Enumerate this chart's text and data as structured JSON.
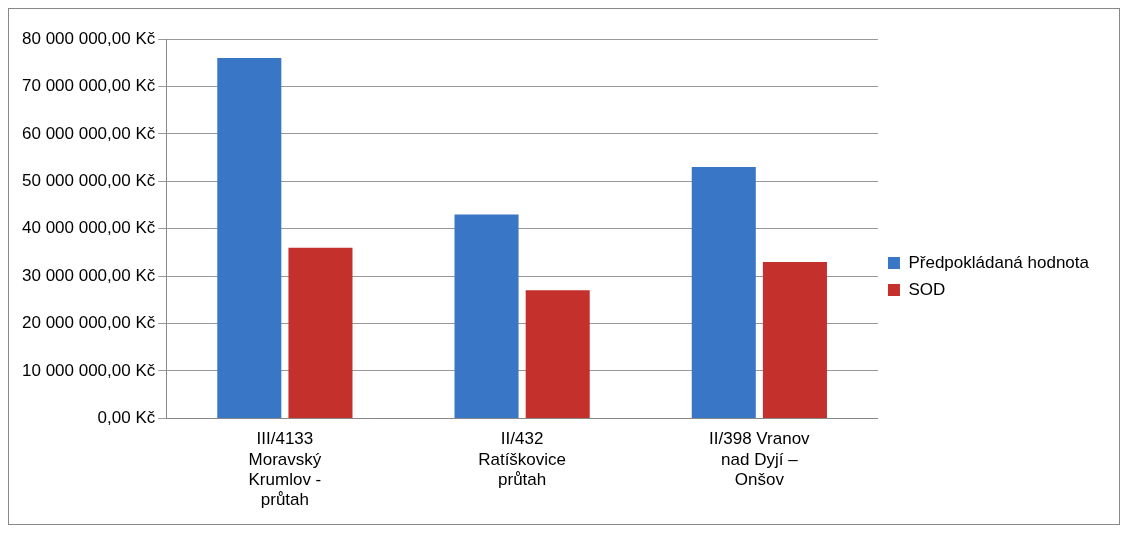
{
  "chart_data": {
    "type": "bar",
    "categories": [
      "III/4133 Moravský Krumlov - průtah",
      "II/432 Ratíškovice průtah",
      "II/398 Vranov nad Dyjí – Onšov"
    ],
    "series": [
      {
        "name": "Předpokládaná hodnota",
        "color": "#3a76c6",
        "values": [
          76000000,
          43000000,
          53000000
        ]
      },
      {
        "name": "SOD",
        "color": "#c4302c",
        "values": [
          36000000,
          27000000,
          33000000
        ]
      }
    ],
    "ylim": [
      0,
      80000000
    ],
    "yticks": [
      {
        "value": 0,
        "label": "0,00 Kč"
      },
      {
        "value": 10000000,
        "label": "10 000 000,00 Kč"
      },
      {
        "value": 20000000,
        "label": "20 000 000,00 Kč"
      },
      {
        "value": 30000000,
        "label": "30 000 000,00 Kč"
      },
      {
        "value": 40000000,
        "label": "40 000 000,00 Kč"
      },
      {
        "value": 50000000,
        "label": "50 000 000,00 Kč"
      },
      {
        "value": 60000000,
        "label": "60 000 000,00 Kč"
      },
      {
        "value": 70000000,
        "label": "70 000 000,00 Kč"
      },
      {
        "value": 80000000,
        "label": "80 000 000,00 Kč"
      }
    ],
    "grid": "y",
    "legend": "right"
  }
}
